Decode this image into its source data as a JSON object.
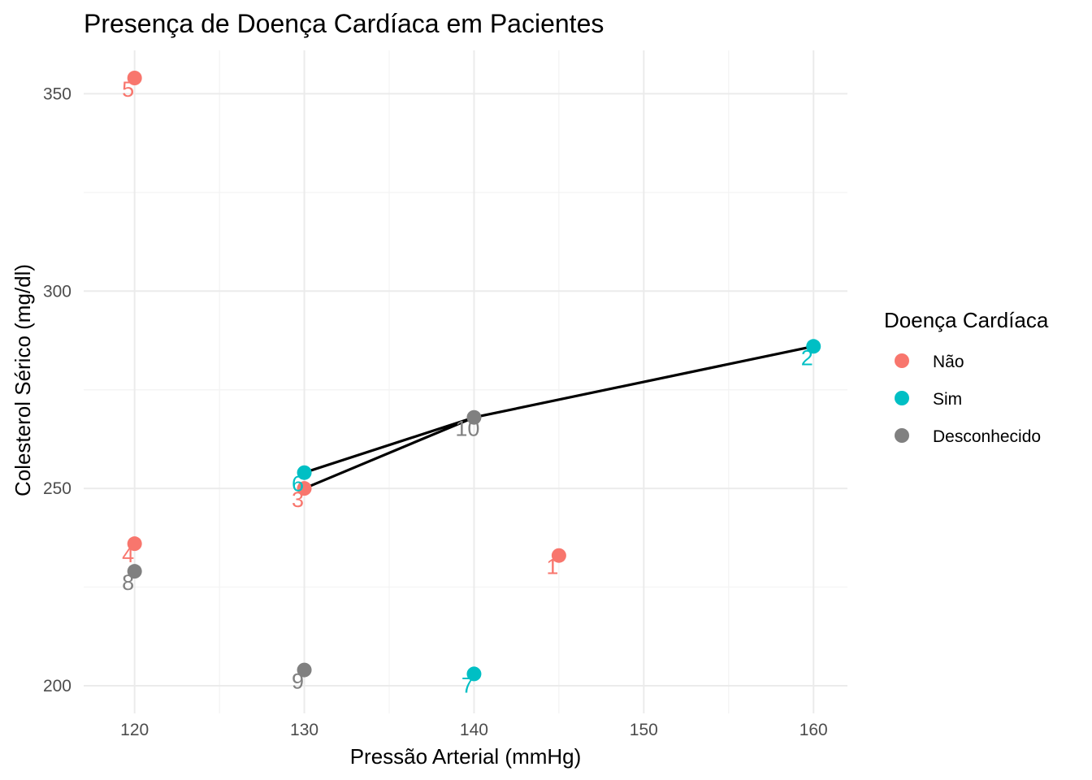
{
  "chart_data": {
    "type": "scatter",
    "title": "Presença de Doença Cardíaca em Pacientes",
    "xlabel": "Pressão Arterial (mmHg)",
    "ylabel": "Colesterol Sérico (mg/dl)",
    "xlim": [
      117,
      162
    ],
    "ylim": [
      193,
      361
    ],
    "x_ticks": [
      120,
      130,
      140,
      150,
      160
    ],
    "y_ticks": [
      200,
      250,
      300,
      350
    ],
    "grid": true,
    "legend": {
      "title": "Doença Cardíaca",
      "position": "right",
      "entries": [
        {
          "label": "Não",
          "color": "#F8766D"
        },
        {
          "label": "Sim",
          "color": "#00BFC4"
        },
        {
          "label": "Desconhecido",
          "color": "#808080"
        }
      ]
    },
    "points": [
      {
        "label": "1",
        "x": 145,
        "y": 233,
        "group": "Não"
      },
      {
        "label": "2",
        "x": 160,
        "y": 286,
        "group": "Sim"
      },
      {
        "label": "3",
        "x": 130,
        "y": 250,
        "group": "Não"
      },
      {
        "label": "4",
        "x": 120,
        "y": 236,
        "group": "Não"
      },
      {
        "label": "5",
        "x": 120,
        "y": 354,
        "group": "Não"
      },
      {
        "label": "6",
        "x": 130,
        "y": 254,
        "group": "Sim"
      },
      {
        "label": "7",
        "x": 140,
        "y": 203,
        "group": "Sim"
      },
      {
        "label": "8",
        "x": 120,
        "y": 229,
        "group": "Desconhecido"
      },
      {
        "label": "9",
        "x": 130,
        "y": 204,
        "group": "Desconhecido"
      },
      {
        "label": "10",
        "x": 140,
        "y": 268,
        "group": "Desconhecido"
      }
    ],
    "path": [
      {
        "x": 130,
        "y": 250
      },
      {
        "x": 140,
        "y": 268
      },
      {
        "x": 160,
        "y": 286
      },
      {
        "x": 140,
        "y": 268
      },
      {
        "x": 130,
        "y": 254
      }
    ],
    "path_color": "#000000"
  }
}
